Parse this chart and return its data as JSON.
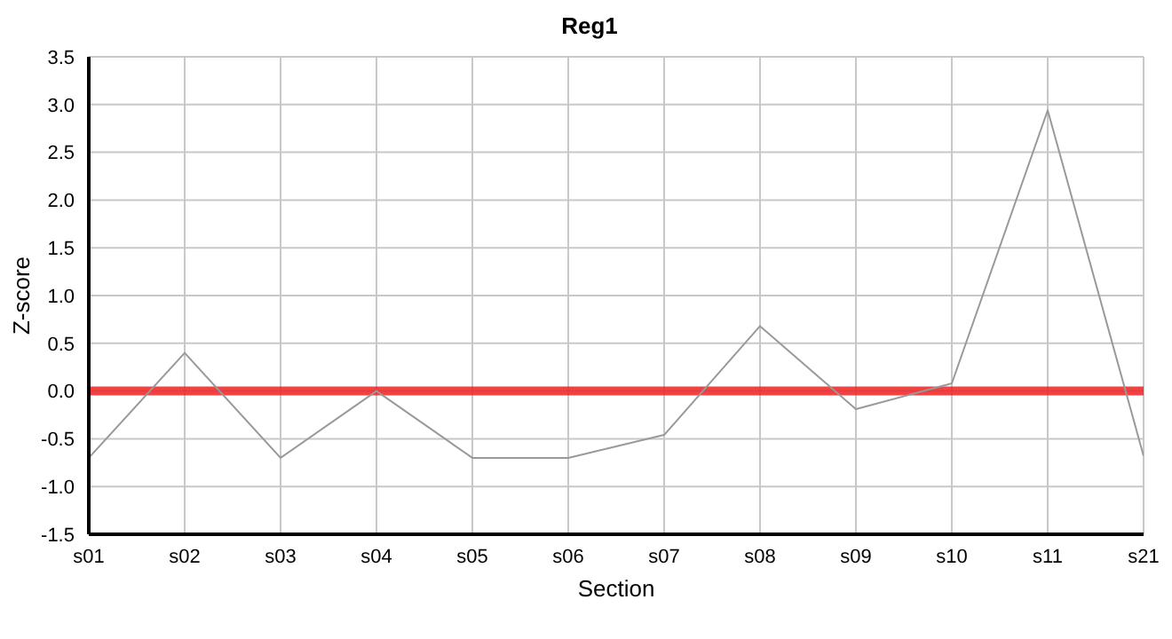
{
  "chart_data": {
    "type": "line",
    "title": "Reg1",
    "xlabel": "Section",
    "ylabel": "Z-score",
    "categories": [
      "s01",
      "s02",
      "s03",
      "s04",
      "s05",
      "s06",
      "s07",
      "s08",
      "s09",
      "s10",
      "s11",
      "s21"
    ],
    "series": [
      {
        "color": "#999999",
        "values": [
          -0.7,
          0.4,
          -0.7,
          0.0,
          -0.7,
          -0.7,
          -0.46,
          0.68,
          -0.19,
          0.08,
          2.94,
          -0.68
        ]
      }
    ],
    "ylim": [
      -1.5,
      3.5
    ],
    "yticks": [
      {
        "value": -1.5,
        "label": "-1.5"
      },
      {
        "value": -1,
        "label": "-1.0"
      },
      {
        "value": -0.5,
        "label": "-0.5"
      },
      {
        "value": 0,
        "label": "0.0"
      },
      {
        "value": 0.5,
        "label": "0.5"
      },
      {
        "value": 1,
        "label": "1.0"
      },
      {
        "value": 1.5,
        "label": "1.5"
      },
      {
        "value": 2,
        "label": "2.0"
      },
      {
        "value": 2.5,
        "label": "2.5"
      },
      {
        "value": 3,
        "label": "3.0"
      },
      {
        "value": 3.5,
        "label": "3.5"
      }
    ],
    "ref_lines": [
      {
        "axis": "y",
        "value": 0,
        "color": "#ee2222"
      }
    ],
    "grid": true,
    "legend": false,
    "marker": "none",
    "line_style": "solid"
  }
}
